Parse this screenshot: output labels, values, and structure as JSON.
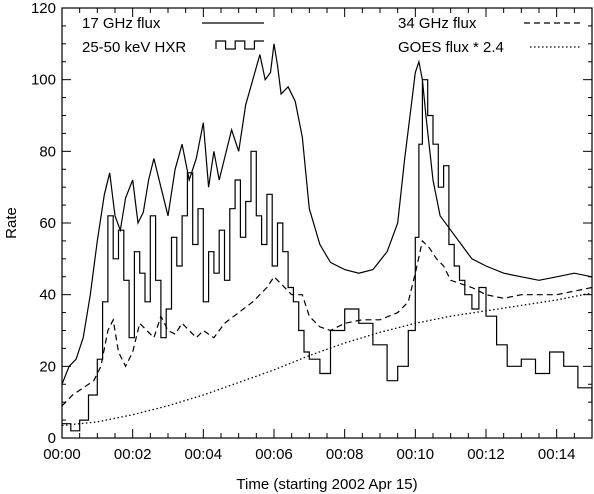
{
  "chart_data": {
    "type": "line",
    "title": "",
    "xlabel": "Time (starting 2002 Apr 15)",
    "ylabel": "Rate",
    "x_unit": "minutes",
    "xlim": [
      0,
      15
    ],
    "ylim": [
      0,
      120
    ],
    "x_ticks": [
      {
        "value": 0,
        "label": "00:00"
      },
      {
        "value": 2,
        "label": "00:02"
      },
      {
        "value": 4,
        "label": "00:04"
      },
      {
        "value": 6,
        "label": "00:06"
      },
      {
        "value": 8,
        "label": "00:08"
      },
      {
        "value": 10,
        "label": "00:10"
      },
      {
        "value": 12,
        "label": "00:12"
      },
      {
        "value": 14,
        "label": "00:14"
      }
    ],
    "y_ticks": [
      {
        "value": 0,
        "label": "0"
      },
      {
        "value": 20,
        "label": "20"
      },
      {
        "value": 40,
        "label": "40"
      },
      {
        "value": 60,
        "label": "60"
      },
      {
        "value": 80,
        "label": "80"
      },
      {
        "value": 100,
        "label": "100"
      },
      {
        "value": 120,
        "label": "120"
      }
    ],
    "grid": false,
    "legend_position": "top",
    "series": [
      {
        "name": "17 GHz flux",
        "style": "solid",
        "x": [
          0,
          0.2,
          0.4,
          0.6,
          0.8,
          1.0,
          1.2,
          1.35,
          1.5,
          1.65,
          1.8,
          2.0,
          2.15,
          2.3,
          2.45,
          2.6,
          2.8,
          3.0,
          3.2,
          3.4,
          3.6,
          3.8,
          4.0,
          4.15,
          4.3,
          4.45,
          4.6,
          4.8,
          5.0,
          5.2,
          5.4,
          5.6,
          5.75,
          5.9,
          6.0,
          6.1,
          6.2,
          6.4,
          6.6,
          6.8,
          7.0,
          7.3,
          7.6,
          8.0,
          8.4,
          8.8,
          9.2,
          9.5,
          9.7,
          9.9,
          10.0,
          10.1,
          10.2,
          10.3,
          10.5,
          10.7,
          11.0,
          11.3,
          11.6,
          12.0,
          12.5,
          13.0,
          13.5,
          14.0,
          14.5,
          15.0
        ],
        "values": [
          15,
          20,
          22,
          28,
          40,
          55,
          68,
          74,
          62,
          58,
          67,
          72,
          60,
          63,
          72,
          78,
          70,
          62,
          75,
          82,
          72,
          78,
          88,
          70,
          80,
          72,
          78,
          86,
          80,
          93,
          100,
          107,
          100,
          102,
          110,
          104,
          96,
          98,
          94,
          84,
          64,
          54,
          49,
          47,
          46,
          47,
          52,
          60,
          78,
          94,
          102,
          105,
          100,
          90,
          72,
          62,
          58,
          54,
          50,
          48,
          46,
          45,
          44,
          45,
          46,
          45
        ]
      },
      {
        "name": "34 GHz flux",
        "style": "dashed",
        "x": [
          0,
          0.3,
          0.6,
          0.9,
          1.1,
          1.3,
          1.45,
          1.6,
          1.8,
          2.0,
          2.2,
          2.4,
          2.6,
          2.8,
          3.0,
          3.2,
          3.4,
          3.6,
          3.8,
          4.0,
          4.3,
          4.6,
          5.0,
          5.4,
          5.8,
          6.0,
          6.2,
          6.5,
          6.8,
          7.0,
          7.3,
          7.6,
          8.0,
          8.5,
          9.0,
          9.5,
          9.8,
          10.0,
          10.2,
          10.4,
          10.6,
          10.8,
          11.0,
          11.3,
          11.6,
          12.0,
          12.5,
          13.0,
          13.5,
          14.0,
          14.5,
          15.0
        ],
        "values": [
          9,
          12,
          14,
          16,
          20,
          30,
          33,
          24,
          20,
          24,
          32,
          30,
          28,
          34,
          30,
          29,
          32,
          30,
          28,
          30,
          28,
          32,
          35,
          38,
          42,
          45,
          43,
          40,
          40,
          34,
          31,
          30,
          32,
          33,
          33,
          35,
          38,
          46,
          55,
          53,
          50,
          48,
          44,
          43,
          42,
          40,
          39,
          40,
          40,
          40,
          41,
          42
        ]
      },
      {
        "name": "GOES flux * 2.4",
        "style": "dotted",
        "x": [
          0,
          1,
          2,
          3,
          4,
          5,
          6,
          7,
          8,
          9,
          10,
          11,
          12,
          13,
          14,
          15
        ],
        "values": [
          3.5,
          4.5,
          6.5,
          9,
          12,
          15.5,
          19,
          23,
          26.5,
          29.5,
          32,
          34,
          35.5,
          37,
          38.5,
          40.5
        ]
      },
      {
        "name": "25-50 keV HXR",
        "style": "step",
        "x": [
          0,
          0.25,
          0.5,
          0.75,
          1.0,
          1.15,
          1.3,
          1.45,
          1.6,
          1.75,
          1.9,
          2.05,
          2.2,
          2.35,
          2.5,
          2.65,
          2.8,
          2.95,
          3.1,
          3.25,
          3.4,
          3.55,
          3.7,
          3.85,
          4.0,
          4.15,
          4.3,
          4.45,
          4.6,
          4.75,
          4.9,
          5.05,
          5.2,
          5.35,
          5.5,
          5.65,
          5.8,
          5.95,
          6.1,
          6.25,
          6.4,
          6.55,
          6.7,
          6.85,
          7.0,
          7.3,
          7.6,
          8.0,
          8.4,
          8.8,
          9.2,
          9.5,
          9.8,
          10.0,
          10.1,
          10.2,
          10.35,
          10.5,
          10.65,
          10.8,
          10.95,
          11.1,
          11.25,
          11.4,
          11.6,
          11.8,
          12.0,
          12.3,
          12.6,
          13.0,
          13.4,
          13.8,
          14.2,
          14.6,
          15.0
        ],
        "values": [
          4,
          2,
          5,
          12,
          22,
          38,
          62,
          50,
          58,
          44,
          28,
          52,
          46,
          38,
          62,
          44,
          28,
          36,
          56,
          48,
          62,
          74,
          54,
          64,
          38,
          52,
          46,
          58,
          44,
          64,
          72,
          56,
          66,
          80,
          62,
          54,
          68,
          48,
          60,
          52,
          42,
          38,
          30,
          24,
          22,
          18,
          30,
          36,
          32,
          26,
          16,
          20,
          30,
          56,
          82,
          100,
          90,
          82,
          70,
          76,
          54,
          48,
          44,
          40,
          36,
          42,
          34,
          26,
          20,
          22,
          18,
          24,
          20,
          14,
          10
        ]
      }
    ]
  }
}
